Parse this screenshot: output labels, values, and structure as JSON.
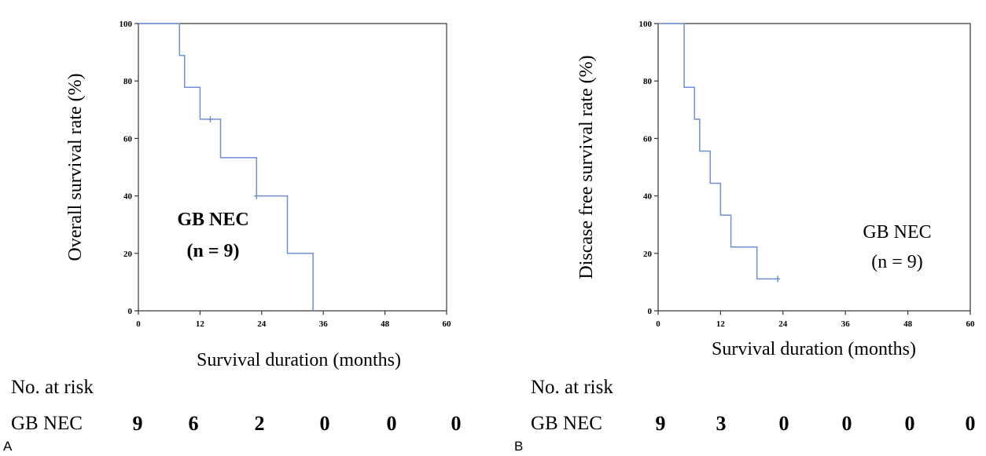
{
  "chart_data": [
    {
      "type": "line",
      "panel_label": "A",
      "ylabel": "Overall  survival rate (%)",
      "xlabel": "Survival duration (months)",
      "xlim": [
        0,
        60
      ],
      "ylim": [
        0,
        100
      ],
      "xticks": [
        0,
        12,
        24,
        36,
        48,
        60
      ],
      "yticks": [
        0,
        20,
        40,
        60,
        80,
        100
      ],
      "annotation": [
        "GB NEC",
        "(n = 9)"
      ],
      "annotation_bold": true,
      "line_color": "#6f8fd6",
      "series": [
        {
          "x": [
            0,
            8,
            8,
            9,
            9,
            12,
            12,
            16,
            16,
            23,
            23,
            29,
            29,
            34,
            34
          ],
          "y": [
            100,
            100,
            88.9,
            88.9,
            77.8,
            77.8,
            66.7,
            66.7,
            53.3,
            53.3,
            40,
            40,
            20,
            20,
            0
          ]
        }
      ],
      "censored": [
        {
          "x": 14,
          "y": 66.7
        },
        {
          "x": 23,
          "y": 40
        }
      ],
      "risk_table": {
        "heading": "No. at risk",
        "group": "GB NEC",
        "values": [
          "9",
          "6",
          "2",
          "0",
          "0",
          "0"
        ]
      }
    },
    {
      "type": "line",
      "panel_label": "B",
      "ylabel": "Discase free survival rate (%)",
      "xlabel": "Survival duration (months)",
      "xlim": [
        0,
        60
      ],
      "ylim": [
        0,
        100
      ],
      "xticks": [
        0,
        12,
        24,
        36,
        48,
        60
      ],
      "yticks": [
        0,
        20,
        40,
        60,
        80,
        100
      ],
      "annotation": [
        "GB NEC",
        "(n = 9)"
      ],
      "annotation_bold": false,
      "line_color": "#6f8fd6",
      "series": [
        {
          "x": [
            0,
            5,
            5,
            7,
            7,
            8,
            8,
            10,
            10,
            12,
            12,
            14,
            14,
            19,
            19,
            23
          ],
          "y": [
            100,
            100,
            77.8,
            77.8,
            66.7,
            66.7,
            55.6,
            55.6,
            44.4,
            44.4,
            33.3,
            33.3,
            22.2,
            22.2,
            11.1,
            11.1
          ]
        }
      ],
      "censored": [
        {
          "x": 23,
          "y": 11.1
        }
      ],
      "risk_table": {
        "heading": "No. at risk",
        "group": "GB NEC",
        "values": [
          "9",
          "3",
          "0",
          "0",
          "0",
          "0"
        ]
      }
    }
  ]
}
